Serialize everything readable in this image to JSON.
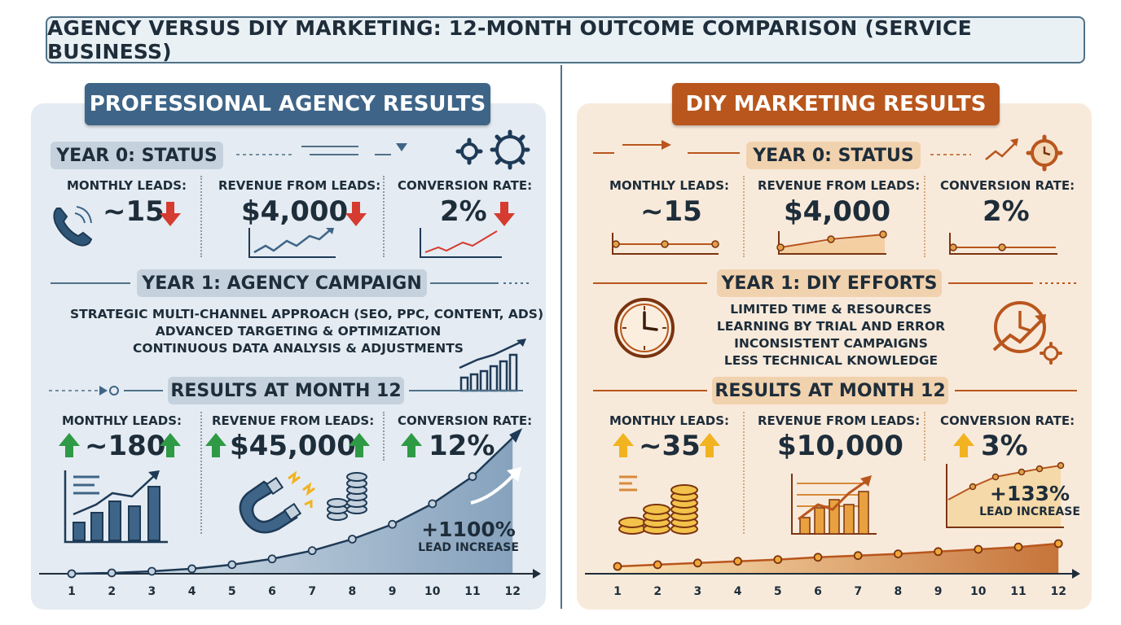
{
  "title": "AGENCY VERSUS DIY MARKETING: 12-MONTH OUTCOME COMPARISON (SERVICE BUSINESS)",
  "agency": {
    "header": "PROFESSIONAL AGENCY RESULTS",
    "year0_label": "YEAR 0: STATUS",
    "year0": {
      "leads_label": "MONTHLY LEADS:",
      "leads_value": "~15",
      "revenue_label": "REVENUE FROM LEADS:",
      "revenue_value": "$4,000",
      "conversion_label": "CONVERSION RATE:",
      "conversion_value": "2%"
    },
    "year1_label": "YEAR 1: AGENCY CAMPAIGN",
    "year1_lines": [
      "STRATEGIC MULTI-CHANNEL APPROACH (SEO, PPC, CONTENT, ADS)",
      "ADVANCED TARGETING & OPTIMIZATION",
      "CONTINUOUS DATA ANALYSIS & ADJUSTMENTS"
    ],
    "results_label": "RESULTS AT MONTH 12",
    "results": {
      "leads_label": "MONTHLY LEADS:",
      "leads_value": "~180",
      "revenue_label": "REVENUE FROM LEADS:",
      "revenue_value": "$45,000",
      "conversion_label": "CONVERSION RATE:",
      "conversion_value": "12%"
    },
    "increase_pct": "+1100%",
    "increase_text": "LEAD INCREASE"
  },
  "diy": {
    "header": "DIY MARKETING RESULTS",
    "year0_label": "YEAR 0: STATUS",
    "year0": {
      "leads_label": "MONTHLY LEADS:",
      "leads_value": "~15",
      "revenue_label": "REVENUE FROM LEADS:",
      "revenue_value": "$4,000",
      "conversion_label": "CONVERSION RATE:",
      "conversion_value": "2%"
    },
    "year1_label": "YEAR 1: DIY EFFORTS",
    "year1_lines": [
      "LIMITED TIME & RESOURCES",
      "LEARNING BY TRIAL AND ERROR",
      "INCONSISTENT CAMPAIGNS",
      "LESS TECHNICAL KNOWLEDGE"
    ],
    "results_label": "RESULTS AT MONTH 12",
    "results": {
      "leads_label": "MONTHLY LEADS:",
      "leads_value": "~35",
      "revenue_label": "REVENUE FROM LEADS:",
      "revenue_value": "$10,000",
      "conversion_label": "CONVERSION RATE:",
      "conversion_value": "3%"
    },
    "increase_pct": "+133%",
    "increase_text": "LEAD INCREASE"
  },
  "chart_data": [
    {
      "type": "line",
      "name": "agency",
      "x": [
        1,
        2,
        3,
        4,
        5,
        6,
        7,
        8,
        9,
        10,
        11,
        12
      ],
      "values": [
        15,
        16,
        18,
        21,
        26,
        33,
        43,
        57,
        75,
        100,
        133,
        180
      ],
      "color": "#1e3a56"
    },
    {
      "type": "line",
      "name": "diy",
      "x": [
        1,
        2,
        3,
        4,
        5,
        6,
        7,
        8,
        9,
        10,
        11,
        12
      ],
      "values": [
        15,
        16.5,
        18,
        19.5,
        21,
        23,
        24.5,
        26,
        28,
        30,
        32,
        35
      ],
      "color": "#b9561d"
    }
  ],
  "colors": {
    "agency": "#3e6588",
    "diy": "#b9561d",
    "up": "#2e9a45",
    "down": "#d63b2f",
    "gold": "#f2b320"
  }
}
